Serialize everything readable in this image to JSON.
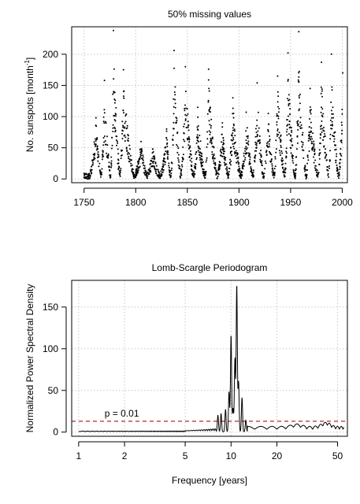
{
  "chart_data": [
    {
      "type": "scatter",
      "title": "50% missing values",
      "xlabel": "",
      "ylabel": "No. sunspots [month",
      "ylabel_sup": "-1",
      "ylabel_close": "]",
      "xlim": [
        1738,
        2005
      ],
      "ylim": [
        -6,
        244
      ],
      "xticks": [
        1750,
        1800,
        1850,
        1900,
        1950,
        2000
      ],
      "yticks": [
        0,
        50,
        100,
        150,
        200
      ],
      "grid": true,
      "cycles": [
        {
          "start": 1755.2,
          "peak": 1761.5,
          "end": 1766.5,
          "max": 98
        },
        {
          "start": 1766.5,
          "peak": 1769.7,
          "end": 1775.5,
          "max": 158
        },
        {
          "start": 1775.5,
          "peak": 1778.4,
          "end": 1784.7,
          "max": 238
        },
        {
          "start": 1784.7,
          "peak": 1788.1,
          "end": 1798.3,
          "max": 175
        },
        {
          "start": 1798.3,
          "peak": 1805.2,
          "end": 1810.6,
          "max": 60
        },
        {
          "start": 1810.6,
          "peak": 1816.4,
          "end": 1823.3,
          "max": 48
        },
        {
          "start": 1823.3,
          "peak": 1829.9,
          "end": 1833.9,
          "max": 80
        },
        {
          "start": 1833.9,
          "peak": 1837.2,
          "end": 1843.5,
          "max": 206
        },
        {
          "start": 1843.5,
          "peak": 1848.1,
          "end": 1856.0,
          "max": 180
        },
        {
          "start": 1856.0,
          "peak": 1860.1,
          "end": 1867.2,
          "max": 115
        },
        {
          "start": 1867.2,
          "peak": 1870.6,
          "end": 1878.9,
          "max": 176
        },
        {
          "start": 1878.9,
          "peak": 1883.9,
          "end": 1889.6,
          "max": 90
        },
        {
          "start": 1889.6,
          "peak": 1894.1,
          "end": 1901.7,
          "max": 130
        },
        {
          "start": 1901.7,
          "peak": 1907.0,
          "end": 1913.6,
          "max": 107
        },
        {
          "start": 1913.6,
          "peak": 1917.6,
          "end": 1923.6,
          "max": 154
        },
        {
          "start": 1923.6,
          "peak": 1928.4,
          "end": 1933.8,
          "max": 105
        },
        {
          "start": 1933.8,
          "peak": 1937.4,
          "end": 1944.2,
          "max": 165
        },
        {
          "start": 1944.2,
          "peak": 1947.5,
          "end": 1954.3,
          "max": 202
        },
        {
          "start": 1954.3,
          "peak": 1957.9,
          "end": 1964.9,
          "max": 236
        },
        {
          "start": 1964.9,
          "peak": 1968.9,
          "end": 1976.5,
          "max": 145
        },
        {
          "start": 1976.5,
          "peak": 1979.9,
          "end": 1986.8,
          "max": 187
        },
        {
          "start": 1986.8,
          "peak": 1989.6,
          "end": 1996.4,
          "max": 200
        },
        {
          "start": 1996.4,
          "peak": 2000.5,
          "end": 2008.0,
          "max": 170
        }
      ]
    },
    {
      "type": "line",
      "title": "Lomb-Scargle Periodogram",
      "xlabel": "Frequency [years]",
      "ylabel": "Normalized Power Spectral Density",
      "xscale": "log",
      "xlim": [
        0.9,
        58
      ],
      "ylim": [
        -5,
        182
      ],
      "xticks": [
        1,
        2,
        5,
        10,
        20,
        50
      ],
      "yticks": [
        0,
        50,
        100,
        150
      ],
      "grid": true,
      "series_x_range": [
        1,
        55
      ],
      "peaks": [
        {
          "x": 8.2,
          "y": 20
        },
        {
          "x": 8.6,
          "y": 22
        },
        {
          "x": 9.2,
          "y": 27
        },
        {
          "x": 9.7,
          "y": 48
        },
        {
          "x": 10.0,
          "y": 116
        },
        {
          "x": 10.3,
          "y": 28
        },
        {
          "x": 10.6,
          "y": 88
        },
        {
          "x": 10.9,
          "y": 176
        },
        {
          "x": 11.2,
          "y": 60
        },
        {
          "x": 11.8,
          "y": 41
        },
        {
          "x": 12.5,
          "y": 14
        }
      ],
      "threshold": {
        "value": 13,
        "label": "p = 0.01",
        "color": "#cc0000"
      }
    }
  ]
}
